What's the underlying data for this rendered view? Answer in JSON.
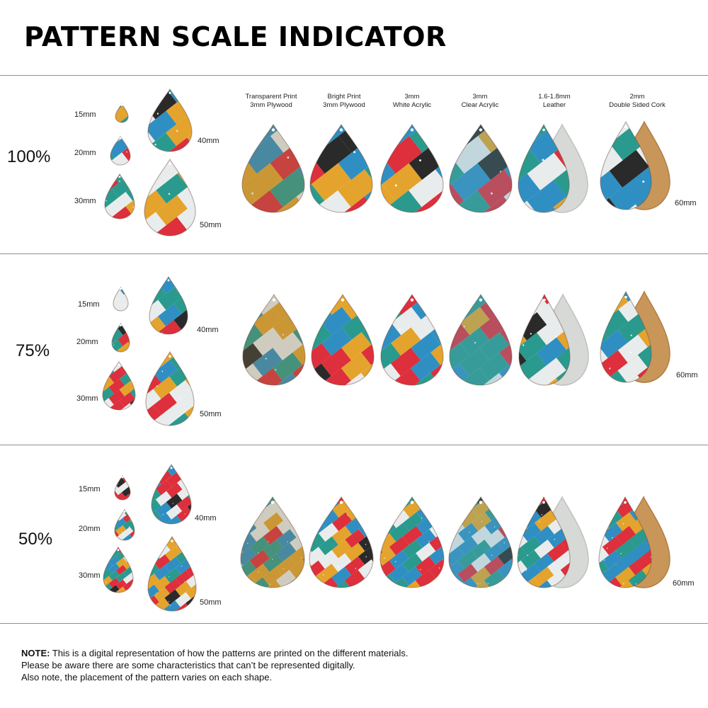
{
  "title": "PATTERN SCALE INDICATOR",
  "sizes": [
    "15mm",
    "20mm",
    "30mm",
    "40mm",
    "50mm"
  ],
  "large_size": "60mm",
  "materials": [
    {
      "line1": "Transparent Print",
      "line2": "3mm Plywood"
    },
    {
      "line1": "Bright Print",
      "line2": "3mm Plywood"
    },
    {
      "line1": "3mm",
      "line2": "White Acrylic"
    },
    {
      "line1": "3mm",
      "line2": "Clear Acrylic"
    },
    {
      "line1": "1.6-1.8mm",
      "line2": "Leather"
    },
    {
      "line1": "2mm",
      "line2": "Double Sided Cork"
    }
  ],
  "sections": [
    {
      "scale": "100%"
    },
    {
      "scale": "75%"
    },
    {
      "scale": "50%"
    }
  ],
  "pattern_colors": [
    "#e4a32c",
    "#2a9a8e",
    "#dd2f3c",
    "#2f8fc2",
    "#e9ecec",
    "#2a2a2a"
  ],
  "note": {
    "lead": "NOTE:",
    "line1": " This is a digital representation of how the patterns are printed on the different materials.",
    "line2": "Please be aware there are some characteristics that can’t be represented digitally.",
    "line3": "Also note, the placement of the pattern varies on each shape."
  }
}
